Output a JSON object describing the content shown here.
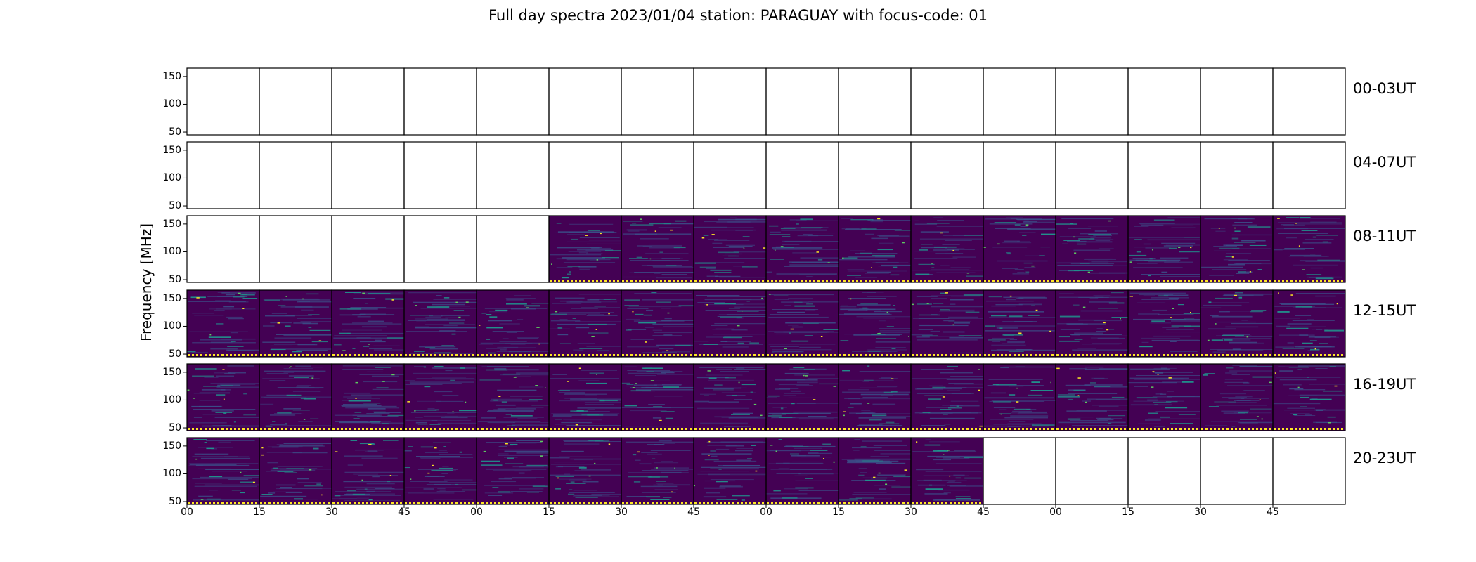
{
  "title": "Full day spectra 2023/01/04 station: PARAGUAY with focus-code: 01",
  "chart_data": {
    "type": "heatmap",
    "title": "Full day spectra 2023/01/04 station: PARAGUAY with focus-code: 01",
    "ylabel": "Frequency [MHz]",
    "xlabel": "",
    "ylim": [
      45,
      165
    ],
    "yticks": [
      50,
      100,
      150
    ],
    "xticks": [
      "00",
      "15",
      "30",
      "45",
      "00",
      "15",
      "30",
      "45",
      "00",
      "15",
      "30",
      "45",
      "00",
      "15",
      "30",
      "45"
    ],
    "colormap": [
      "#440154",
      "#3b528b",
      "#21918c",
      "#5ec962",
      "#fde725"
    ],
    "rows": [
      {
        "label": "00-03UT",
        "panels_with_data": []
      },
      {
        "label": "04-07UT",
        "panels_with_data": []
      },
      {
        "label": "08-11UT",
        "panels_with_data": [
          5,
          6,
          7,
          8,
          9,
          10,
          11,
          12,
          13,
          14,
          15
        ]
      },
      {
        "label": "12-15UT",
        "panels_with_data": [
          0,
          1,
          2,
          3,
          4,
          5,
          6,
          7,
          8,
          9,
          10,
          11,
          12,
          13,
          14,
          15
        ]
      },
      {
        "label": "16-19UT",
        "panels_with_data": [
          0,
          1,
          2,
          3,
          4,
          5,
          6,
          7,
          8,
          9,
          10,
          11,
          12,
          13,
          14,
          15
        ]
      },
      {
        "label": "20-23UT",
        "panels_with_data": [
          0,
          1,
          2,
          3,
          4,
          5,
          6,
          7,
          8,
          9,
          10
        ]
      }
    ]
  }
}
